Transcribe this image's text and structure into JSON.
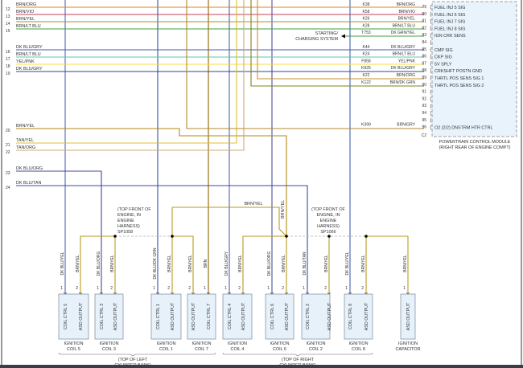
{
  "left_wires": [
    {
      "num": "12",
      "color_code": "BRN/ORG",
      "hex": "#d08a2a"
    },
    {
      "num": "13",
      "color_code": "BRN/VIO",
      "hex": "#c0405a"
    },
    {
      "num": "14",
      "color_code": "BRN/YEL",
      "hex": "#b09010"
    },
    {
      "num": "15",
      "color_code": "BRN/LT BLU",
      "hex": "#40a040"
    },
    {
      "num": "16",
      "color_code": "DK BLU/GRY",
      "hex": "#4a58b8"
    },
    {
      "num": "17",
      "color_code": "BRN/LT BLU",
      "hex": "#60c8a0"
    },
    {
      "num": "18",
      "color_code": "YEL/PNK",
      "hex": "#f2e040"
    },
    {
      "num": "19",
      "color_code": "DK BLU/GRY",
      "hex": "#30409a"
    },
    {
      "num": "20",
      "color_code": "BRN/YEL",
      "hex": "#b08a10"
    },
    {
      "num": "21",
      "color_code": "TAN/YEL",
      "hex": "#dcc030"
    },
    {
      "num": "22",
      "color_code": "TAN/ORG",
      "hex": "#d0a878"
    },
    {
      "num": "23",
      "color_code": "DK BLU/ORG",
      "hex": "#404c90"
    },
    {
      "num": "24",
      "color_code": "DK BLU/TAN",
      "hex": "#3050a0"
    }
  ],
  "pcm": {
    "title": "POWERTRAIN CONTROL MODULE",
    "location": "(RIGHT REAR OF ENGINE COMPT)",
    "connector": "C2",
    "pins": [
      {
        "pin": "79",
        "circuit": "K38",
        "color": "BRN/ORG",
        "function": "FUEL INJ 5 SIG"
      },
      {
        "pin": "80",
        "circuit": "K58",
        "color": "BRN/VIO",
        "function": "FUEL INJ 6 SIG"
      },
      {
        "pin": "81",
        "circuit": "K26",
        "color": "BRN/YEL",
        "function": "FUEL INJ 7 SIG"
      },
      {
        "pin": "82",
        "circuit": "K28",
        "color": "BRN/LT BLU",
        "function": "FUEL INJ 8 SIG"
      },
      {
        "pin": "83",
        "circuit": "T753",
        "color": "DK GRN/YEL",
        "function": "IGN CRK SENS"
      },
      {
        "pin": "84",
        "circuit": "",
        "color": "",
        "function": ""
      },
      {
        "pin": "85",
        "circuit": "K44",
        "color": "DK BLU/GRY",
        "function": "CMP SIG"
      },
      {
        "pin": "86",
        "circuit": "K24",
        "color": "BRN/LT BLU",
        "function": "CKP SIG"
      },
      {
        "pin": "87",
        "circuit": "F858",
        "color": "YEL/PNK",
        "function": "5V SPLY"
      },
      {
        "pin": "88",
        "circuit": "K925",
        "color": "DK BLU/GRY",
        "function": "CRKSHFT POSTN GND"
      },
      {
        "pin": "89",
        "circuit": "K22",
        "color": "BRN/ORG",
        "function": "THRTL POS SENS SIG 1"
      },
      {
        "pin": "90",
        "circuit": "K122",
        "color": "BRN/DK GRN",
        "function": "THRTL POS SENS SIG 2"
      },
      {
        "pin": "91",
        "circuit": "",
        "color": "",
        "function": ""
      },
      {
        "pin": "92",
        "circuit": "",
        "color": "",
        "function": ""
      },
      {
        "pin": "93",
        "circuit": "",
        "color": "",
        "function": ""
      },
      {
        "pin": "94",
        "circuit": "",
        "color": "",
        "function": ""
      },
      {
        "pin": "95",
        "circuit": "",
        "color": "",
        "function": ""
      },
      {
        "pin": "96",
        "circuit": "K399",
        "color": "BRN/GRY",
        "function": "O2 (2/2) DNSTRM HTR CTRL"
      }
    ]
  },
  "starting_charging": [
    "STARTING/",
    "CHARGING SYSTEM"
  ],
  "splices": [
    {
      "lines": [
        "(TOP FRONT OF",
        "ENGINE, IN",
        "ENGINE",
        "HARNESS)",
        "SP1058"
      ]
    },
    {
      "lines": [
        "(TOP FRONT OF",
        "ENGINE, IN",
        "ENGINE",
        "HARNESS)",
        "SP1066"
      ]
    }
  ],
  "brn_yel_label": "BRN/YEL",
  "components": [
    {
      "name": [
        "IGNITION",
        "COIL 5"
      ],
      "pins": [
        {
          "num": "1",
          "func": "COIL CTRL 5",
          "wire": "DK BLU/YEL"
        },
        {
          "num": "2",
          "func": "ASD OUTPUT",
          "wire": "BRN/YEL"
        }
      ]
    },
    {
      "name": [
        "IGNITION",
        "COIL 3"
      ],
      "pins": [
        {
          "num": "1",
          "func": "COIL CTRL 3",
          "wire": "DK BLU/ORG"
        },
        {
          "num": "2",
          "func": "ASD OUTPUT",
          "wire": "BRN/YEL"
        }
      ]
    },
    {
      "name": [
        "IGNITION",
        "COIL 1"
      ],
      "pins": [
        {
          "num": "1",
          "func": "COIL CTRL 1",
          "wire": "DK BLU/DK GRN"
        },
        {
          "num": "2",
          "func": "ASD OUTPUT",
          "wire": "BRN/YEL"
        }
      ]
    },
    {
      "name": [
        "IGNITION",
        "COIL 7"
      ],
      "pins": [
        {
          "num": "2",
          "func": "ASD OUTPUT",
          "wire": "BRN/YEL"
        },
        {
          "num": "1",
          "func": "COIL CTRL 7",
          "wire": "BRN"
        }
      ]
    },
    {
      "name": [
        "IGNITION",
        "COIL 4"
      ],
      "pins": [
        {
          "num": "1",
          "func": "COIL CTRL 4",
          "wire": "DK BLU/GRY"
        },
        {
          "num": "2",
          "func": "ASD OUTPUT",
          "wire": "BRN/YEL"
        }
      ]
    },
    {
      "name": [
        "IGNITION",
        "COIL 6"
      ],
      "pins": [
        {
          "num": "1",
          "func": "COIL CTRL 6",
          "wire": "DK BLU/ORG"
        },
        {
          "num": "2",
          "func": "ASD OUTPUT",
          "wire": "BRN/YEL"
        }
      ]
    },
    {
      "name": [
        "IGNITION",
        "COIL 2"
      ],
      "pins": [
        {
          "num": "1",
          "func": "COIL CTRL 2",
          "wire": "DK BLU/TAN"
        },
        {
          "num": "2",
          "func": "ASD OUTPUT",
          "wire": "BRN/YEL"
        }
      ]
    },
    {
      "name": [
        "IGNITION",
        "COIL 8"
      ],
      "pins": [
        {
          "num": "1",
          "func": "COIL CTRL 8",
          "wire": "DK BLU/YEL"
        },
        {
          "num": "2",
          "func": "ASD OUTPUT",
          "wire": "BRN/YEL"
        }
      ]
    },
    {
      "name": [
        "IGNITION",
        "CAPACITOR"
      ],
      "pins": [
        {
          "num": "1",
          "func": "ASD OUTPUT",
          "wire": "BRN/YEL"
        }
      ]
    }
  ],
  "banks": [
    {
      "lines": [
        "(TOP OF LEFT",
        "CYLINDER BANK)"
      ]
    },
    {
      "lines": [
        "(TOP OF RIGHT",
        "CYLINDER BANK)"
      ]
    }
  ],
  "colors": {
    "asd": "#b89a20",
    "pcm_fill": "#e8f3fc",
    "box_fill": "#e6f1fa",
    "box_stroke": "#7a8a9a",
    "splice_dash": "#b0b0b0",
    "green": "#40a040"
  }
}
